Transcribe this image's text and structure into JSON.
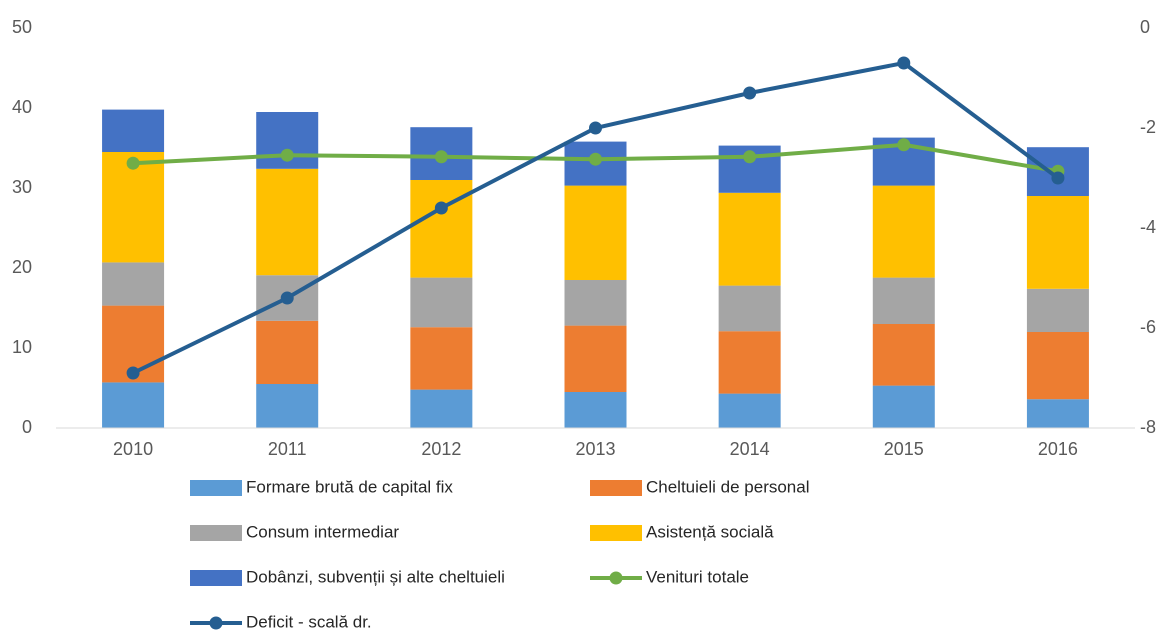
{
  "chart_data": {
    "type": "bar",
    "stacked": true,
    "categories": [
      "2010",
      "2011",
      "2012",
      "2013",
      "2014",
      "2015",
      "2016"
    ],
    "series": [
      {
        "name": "Formare brută de capital fix",
        "type": "bar",
        "color": "#5b9bd5",
        "values": [
          5.7,
          5.5,
          4.8,
          4.5,
          4.3,
          5.3,
          3.6
        ]
      },
      {
        "name": "Cheltuieli de personal",
        "type": "bar",
        "color": "#ed7d31",
        "values": [
          9.6,
          7.9,
          7.8,
          8.3,
          7.8,
          7.7,
          8.4
        ]
      },
      {
        "name": "Consum intermediar",
        "type": "bar",
        "color": "#a5a5a5",
        "values": [
          5.4,
          5.7,
          6.2,
          5.7,
          5.7,
          5.8,
          5.4
        ]
      },
      {
        "name": "Asistență socială",
        "type": "bar",
        "color": "#ffc000",
        "values": [
          13.8,
          13.3,
          12.2,
          11.8,
          11.6,
          11.5,
          11.6
        ]
      },
      {
        "name": "Dobânzi, subvenții și alte cheltuieli",
        "type": "bar",
        "color": "#4472c4",
        "values": [
          5.3,
          7.1,
          6.6,
          5.5,
          5.9,
          6.0,
          6.1
        ]
      },
      {
        "name": "Venituri totale",
        "type": "line",
        "color": "#70ad47",
        "values": [
          33.1,
          34.1,
          33.9,
          33.6,
          33.9,
          35.4,
          32.1
        ]
      },
      {
        "name": "Deficit - scală dr.",
        "type": "line",
        "axis": "y2",
        "color": "#255e91",
        "values": [
          -6.9,
          -5.4,
          -3.6,
          -2.0,
          -1.3,
          -0.7,
          -3.0
        ]
      }
    ],
    "ylim": [
      0,
      50
    ],
    "yticks": [
      0,
      10,
      20,
      30,
      40,
      50
    ],
    "y2lim": [
      -8,
      0
    ],
    "y2ticks": [
      0,
      -2,
      -4,
      -6,
      -8
    ],
    "grid": false,
    "legend": "bottom"
  }
}
